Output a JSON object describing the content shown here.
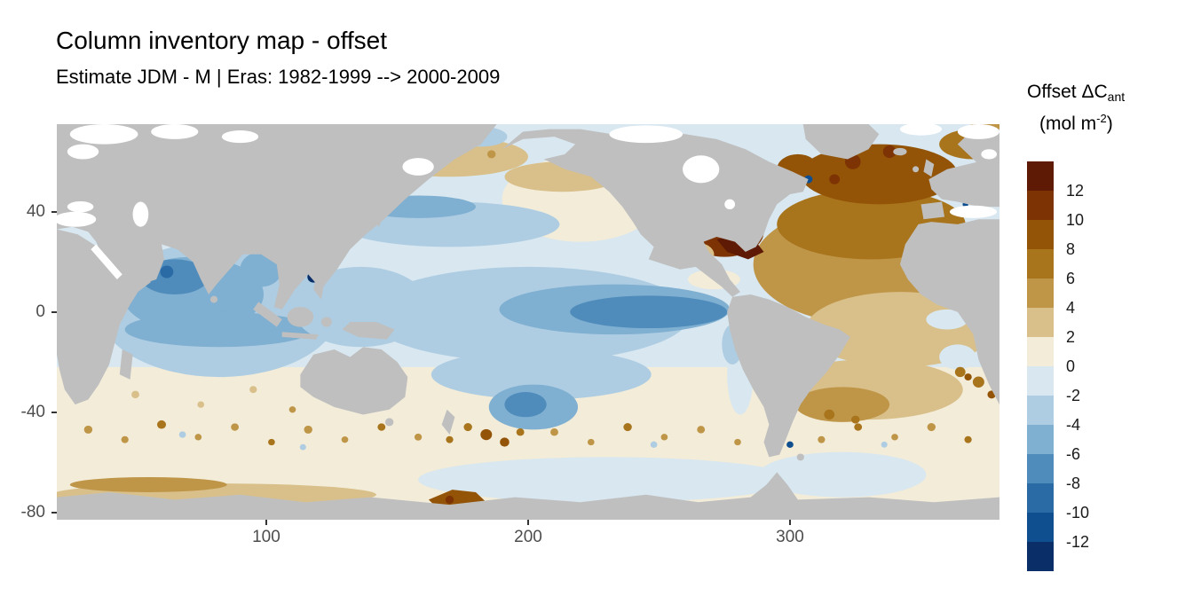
{
  "chart_data": {
    "type": "heatmap",
    "title": "Column inventory map - offset",
    "subtitle": "Estimate JDM - M | Eras: 1982-1999 --> 2000-2009",
    "projection": "equirectangular world map, longitude 20-380, latitude 75 to -83, oceans colored by offset value",
    "x_axis": {
      "labels": [
        "100",
        "200",
        "300"
      ],
      "values": [
        100,
        200,
        300
      ],
      "range": [
        20,
        380
      ],
      "pos_pct": [
        22.22,
        50.0,
        77.78
      ]
    },
    "y_axis": {
      "labels": [
        "40",
        "0",
        "-40",
        "-80"
      ],
      "values": [
        40,
        0,
        -40,
        -80
      ],
      "range": [
        -83,
        75
      ],
      "pos_pct": [
        22.15,
        47.47,
        72.78,
        98.1
      ]
    },
    "legend": {
      "title_main": "Offset ΔC",
      "title_sub": "ant",
      "units_prefix": "(mol m",
      "units_sup": "-2",
      "units_suffix": ")",
      "tick_labels": [
        "12",
        "10",
        "8",
        "6",
        "4",
        "2",
        "0",
        "-2",
        "-4",
        "-6",
        "-8",
        "-10",
        "-12"
      ],
      "colors_top_to_bottom": [
        "#5e1a05",
        "#7d3303",
        "#935407",
        "#a8741c",
        "#bf9648",
        "#d9c08a",
        "#f2ecd9",
        "#d8e7f0",
        "#aecde2",
        "#7fafd1",
        "#4f8cbb",
        "#2a6aa5",
        "#104f8f",
        "#0a2e68"
      ],
      "land_color": "#bfbfbf",
      "no_data_color": "#ffffff"
    },
    "regions": [
      {
        "region": "Arabian Sea / NW Indian Ocean",
        "approx_offset_mol_m2": "-4 to -8"
      },
      {
        "region": "Tropical Indian Ocean",
        "approx_offset_mol_m2": "-2 to -4"
      },
      {
        "region": "Philippine Sea spot",
        "approx_offset_mol_m2": "-12"
      },
      {
        "region": "NW Pacific off Japan (spots)",
        "approx_offset_mol_m2": "-8 to -12"
      },
      {
        "region": "North Pacific subpolar band",
        "approx_offset_mol_m2": "+2 to +6"
      },
      {
        "region": "Central North Pacific",
        "approx_offset_mol_m2": "-2 to 0"
      },
      {
        "region": "Eastern equatorial Pacific tongue",
        "approx_offset_mol_m2": "-4 to -6"
      },
      {
        "region": "South Pacific subtropics",
        "approx_offset_mol_m2": "-2 to 0"
      },
      {
        "region": "SW Pacific east of New Zealand",
        "approx_offset_mol_m2": "-4 to -6 with +8 to +12 spots"
      },
      {
        "region": "Gulf Stream / western North Atlantic",
        "approx_offset_mol_m2": "+10 to >+12"
      },
      {
        "region": "Subpolar North Atlantic / Nordic Seas",
        "approx_offset_mol_m2": "+6 to +10"
      },
      {
        "region": "Subtropical and eastern North Atlantic",
        "approx_offset_mol_m2": "+2 to +6"
      },
      {
        "region": "South Atlantic",
        "approx_offset_mol_m2": "+2 to +6"
      },
      {
        "region": "Agulhas region spots",
        "approx_offset_mol_m2": "+6 to +10"
      },
      {
        "region": "Southern Ocean 40-60S",
        "approx_offset_mol_m2": "0 to +4, speckled"
      },
      {
        "region": "Ross Sea sector",
        "approx_offset_mol_m2": "+8 to +12"
      },
      {
        "region": "Antarctic coastal band, Indian sector",
        "approx_offset_mol_m2": "+2 to +4"
      },
      {
        "region": "Land and marginal seas",
        "approx_offset_mol_m2": "no data (gray / white)"
      }
    ]
  }
}
